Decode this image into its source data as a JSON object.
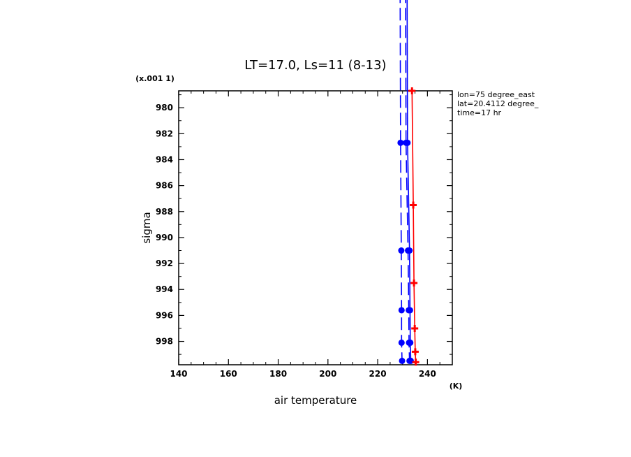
{
  "chart_data": {
    "type": "line",
    "title": "LT=17.0, Ls=11 (8-13)",
    "xlabel": "air temperature",
    "x_unit": "(K)",
    "ylabel": "sigma",
    "y_unit": "(x.001 1)",
    "xlim": [
      140,
      250
    ],
    "ylim": [
      999.8,
      978.7
    ],
    "x_ticks": [
      140,
      160,
      180,
      200,
      220,
      240
    ],
    "y_ticks": [
      980,
      982,
      984,
      986,
      988,
      990,
      992,
      994,
      996,
      998
    ],
    "grid": false,
    "annotations": [
      "lon=75 degree_east",
      "lat=20.4112 degree_",
      "time=17 hr"
    ],
    "series": [
      {
        "color": "#0000ff",
        "style": "dashed",
        "marker": "circle",
        "x": [
          229.2,
          229.5,
          229.6,
          229.6,
          229.8
        ],
        "y": [
          982.7,
          991.0,
          995.6,
          998.1,
          999.5
        ]
      },
      {
        "color": "#0000ff",
        "style": "dashed",
        "marker": "circle",
        "x": [
          231.4,
          232.2,
          232.5,
          232.6,
          232.8
        ],
        "y": [
          982.7,
          991.0,
          995.6,
          998.1,
          999.5
        ]
      },
      {
        "color": "#0000ff",
        "style": "solid",
        "marker": "circle",
        "x": [
          232.0,
          232.8,
          233.0,
          233.1,
          233.3
        ],
        "y": [
          982.7,
          991.0,
          995.6,
          998.1,
          999.5
        ]
      },
      {
        "color": "#ff0000",
        "style": "solid",
        "marker": "plus",
        "x": [
          233.8,
          234.3,
          234.6,
          234.9,
          235.1,
          235.3
        ],
        "y": [
          978.7,
          987.5,
          993.5,
          997.0,
          998.8,
          999.6
        ]
      }
    ]
  }
}
